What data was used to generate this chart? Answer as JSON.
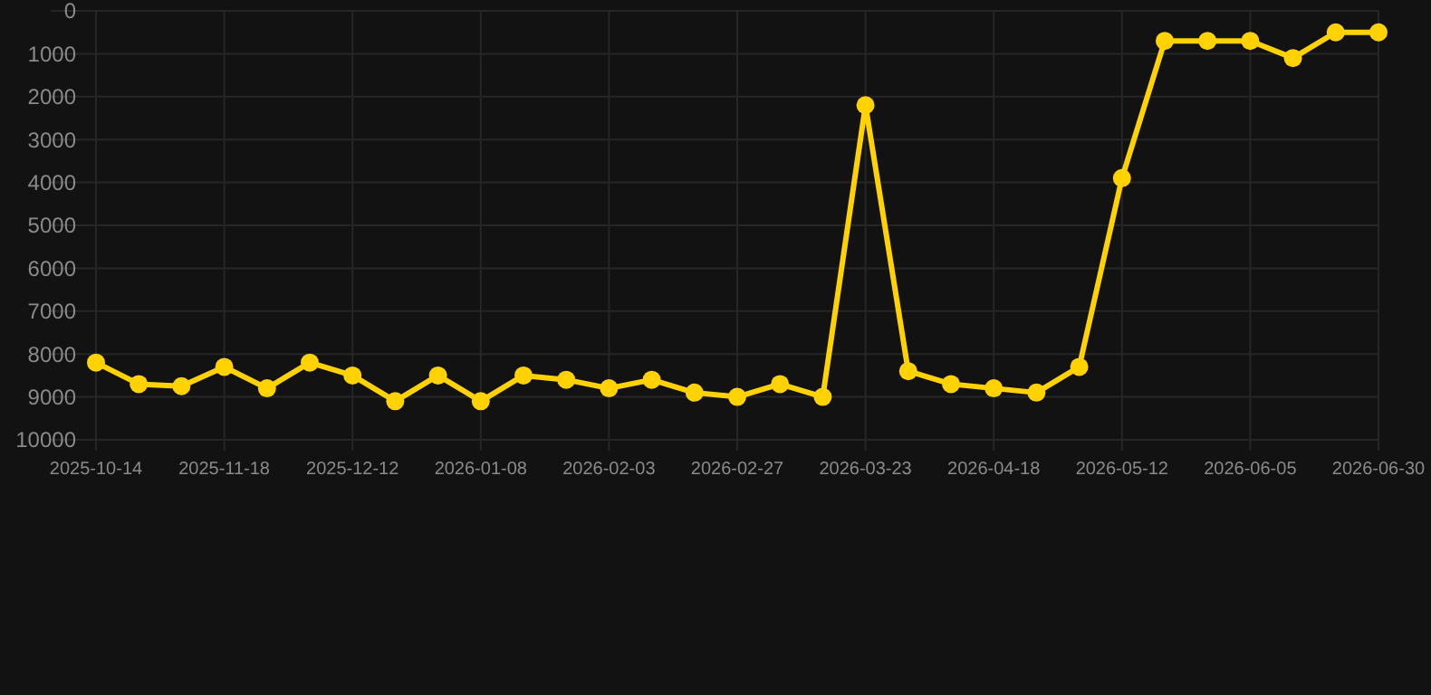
{
  "chart_data": {
    "type": "line",
    "categories": [
      "2025-10-14",
      null,
      null,
      "2025-11-18",
      null,
      null,
      "2025-12-12",
      null,
      null,
      "2026-01-08",
      null,
      null,
      "2026-02-03",
      null,
      null,
      "2026-02-27",
      null,
      null,
      "2026-03-23",
      null,
      null,
      "2026-04-18",
      null,
      null,
      "2026-05-12",
      null,
      null,
      "2026-06-05",
      null,
      null,
      "2026-06-30"
    ],
    "series": [
      {
        "color": "#ffd200",
        "values": [
          8200,
          8700,
          8750,
          8300,
          8800,
          8200,
          8500,
          9100,
          8500,
          9100,
          8500,
          8600,
          8800,
          8600,
          8900,
          9000,
          8700,
          9000,
          2200,
          8400,
          8700,
          8800,
          8900,
          8300,
          3900,
          700,
          700,
          700,
          1100,
          500,
          500
        ]
      }
    ],
    "ylim": [
      10000,
      0
    ],
    "yticks": [
      0,
      1000,
      2000,
      3000,
      4000,
      5000,
      6000,
      7000,
      8000,
      9000,
      10000
    ],
    "grid": true,
    "marker": "circle",
    "line_style": "solid"
  }
}
